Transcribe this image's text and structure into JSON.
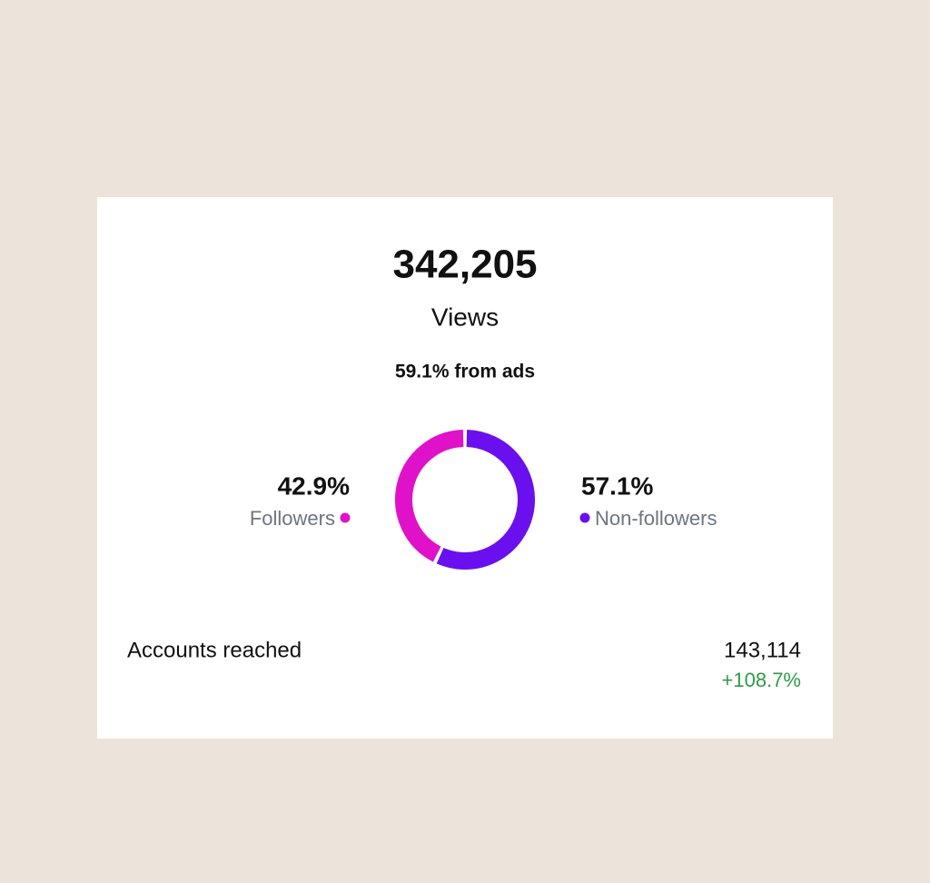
{
  "header": {
    "total": "342,205",
    "label": "Views",
    "ads_note": "59.1% from ads"
  },
  "chart_data": {
    "type": "pie",
    "donut": true,
    "categories": [
      "Followers",
      "Non-followers"
    ],
    "values": [
      42.9,
      57.1
    ],
    "value_labels": [
      "42.9%",
      "57.1%"
    ],
    "colors": [
      "#e012c9",
      "#6a10ee"
    ]
  },
  "footer": {
    "label": "Accounts reached",
    "value": "143,114",
    "change": "+108.7%"
  }
}
